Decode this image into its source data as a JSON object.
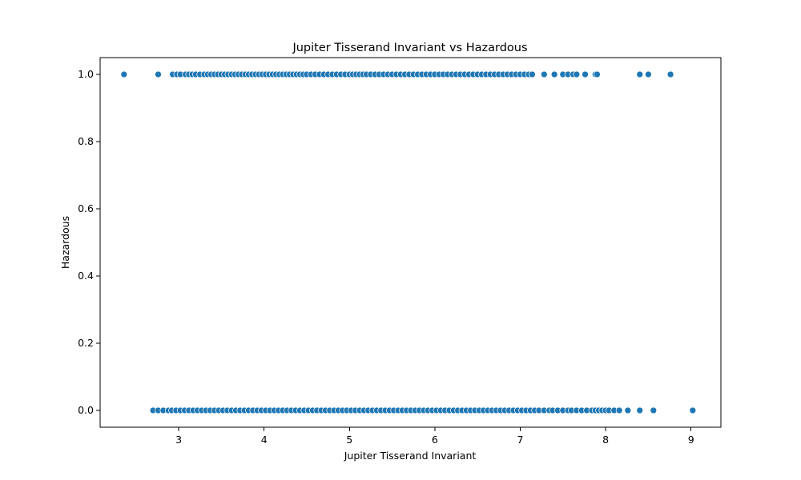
{
  "chart_data": {
    "type": "scatter",
    "title": "Jupiter Tisserand Invariant vs Hazardous",
    "xlabel": "Jupiter Tisserand Invariant",
    "ylabel": "Hazardous",
    "xlim": [
      2.08,
      9.35
    ],
    "ylim": [
      -0.05,
      1.05
    ],
    "xticks": [
      3,
      4,
      5,
      6,
      7,
      8,
      9
    ],
    "yticks": [
      0.0,
      0.2,
      0.4,
      0.6,
      0.8,
      1.0
    ],
    "xtick_labels": [
      "3",
      "4",
      "5",
      "6",
      "7",
      "8",
      "9"
    ],
    "ytick_labels": [
      "0.0",
      "0.2",
      "0.4",
      "0.6",
      "0.8",
      "1.0"
    ],
    "grid": false,
    "marker_color": "#1f77b4",
    "series": [
      {
        "x": [
          2.36,
          2.76,
          2.93,
          2.98,
          3.02,
          3.08,
          3.12,
          3.16,
          3.2,
          3.25,
          3.3,
          3.34,
          3.38,
          3.42,
          3.46,
          3.5,
          3.54,
          3.58,
          3.62,
          3.66,
          3.7,
          3.74,
          3.78,
          3.82,
          3.86,
          3.9,
          3.94,
          3.98,
          4.02,
          4.06,
          4.1,
          4.14,
          4.18,
          4.22,
          4.26,
          4.3,
          4.34,
          4.38,
          4.42,
          4.46,
          4.5,
          4.55,
          4.6,
          4.65,
          4.7,
          4.75,
          4.8,
          4.85,
          4.9,
          4.95,
          5.0,
          5.04,
          5.08,
          5.12,
          5.16,
          5.2,
          5.25,
          5.3,
          5.35,
          5.4,
          5.45,
          5.5,
          5.55,
          5.6,
          5.65,
          5.7,
          5.75,
          5.8,
          5.85,
          5.9,
          5.95,
          6.0,
          6.05,
          6.1,
          6.15,
          6.2,
          6.25,
          6.3,
          6.35,
          6.4,
          6.45,
          6.5,
          6.55,
          6.6,
          6.65,
          6.7,
          6.75,
          6.8,
          6.85,
          6.9,
          6.95,
          7.0,
          7.05,
          7.1,
          7.14,
          7.28,
          7.4,
          7.5,
          7.56,
          7.62,
          7.66,
          7.76,
          7.88,
          7.9,
          8.4,
          8.5,
          8.76
        ],
        "y": [
          1,
          1,
          1,
          1,
          1,
          1,
          1,
          1,
          1,
          1,
          1,
          1,
          1,
          1,
          1,
          1,
          1,
          1,
          1,
          1,
          1,
          1,
          1,
          1,
          1,
          1,
          1,
          1,
          1,
          1,
          1,
          1,
          1,
          1,
          1,
          1,
          1,
          1,
          1,
          1,
          1,
          1,
          1,
          1,
          1,
          1,
          1,
          1,
          1,
          1,
          1,
          1,
          1,
          1,
          1,
          1,
          1,
          1,
          1,
          1,
          1,
          1,
          1,
          1,
          1,
          1,
          1,
          1,
          1,
          1,
          1,
          1,
          1,
          1,
          1,
          1,
          1,
          1,
          1,
          1,
          1,
          1,
          1,
          1,
          1,
          1,
          1,
          1,
          1,
          1,
          1,
          1,
          1,
          1,
          1,
          1,
          1,
          1,
          1,
          1,
          1,
          1,
          1,
          1,
          1,
          1,
          1
        ]
      },
      {
        "x": [
          2.7,
          2.76,
          2.82,
          2.88,
          2.92,
          2.97,
          3.02,
          3.07,
          3.12,
          3.17,
          3.22,
          3.27,
          3.32,
          3.37,
          3.42,
          3.47,
          3.52,
          3.57,
          3.62,
          3.67,
          3.72,
          3.77,
          3.82,
          3.87,
          3.92,
          3.97,
          4.02,
          4.07,
          4.12,
          4.17,
          4.22,
          4.27,
          4.32,
          4.37,
          4.42,
          4.47,
          4.52,
          4.57,
          4.62,
          4.67,
          4.72,
          4.77,
          4.82,
          4.87,
          4.92,
          4.97,
          5.02,
          5.07,
          5.12,
          5.17,
          5.22,
          5.27,
          5.32,
          5.37,
          5.42,
          5.47,
          5.52,
          5.57,
          5.62,
          5.67,
          5.72,
          5.77,
          5.82,
          5.87,
          5.92,
          5.97,
          6.02,
          6.07,
          6.12,
          6.17,
          6.22,
          6.27,
          6.32,
          6.37,
          6.42,
          6.47,
          6.52,
          6.57,
          6.62,
          6.67,
          6.72,
          6.77,
          6.82,
          6.87,
          6.92,
          6.97,
          7.02,
          7.07,
          7.12,
          7.17,
          7.22,
          7.28,
          7.34,
          7.38,
          7.44,
          7.5,
          7.56,
          7.6,
          7.66,
          7.72,
          7.78,
          7.84,
          7.88,
          7.92,
          7.96,
          8.0,
          8.04,
          8.1,
          8.16,
          8.26,
          8.4,
          8.56,
          9.02
        ],
        "y": [
          0,
          0,
          0,
          0,
          0,
          0,
          0,
          0,
          0,
          0,
          0,
          0,
          0,
          0,
          0,
          0,
          0,
          0,
          0,
          0,
          0,
          0,
          0,
          0,
          0,
          0,
          0,
          0,
          0,
          0,
          0,
          0,
          0,
          0,
          0,
          0,
          0,
          0,
          0,
          0,
          0,
          0,
          0,
          0,
          0,
          0,
          0,
          0,
          0,
          0,
          0,
          0,
          0,
          0,
          0,
          0,
          0,
          0,
          0,
          0,
          0,
          0,
          0,
          0,
          0,
          0,
          0,
          0,
          0,
          0,
          0,
          0,
          0,
          0,
          0,
          0,
          0,
          0,
          0,
          0,
          0,
          0,
          0,
          0,
          0,
          0,
          0,
          0,
          0,
          0,
          0,
          0,
          0,
          0,
          0,
          0,
          0,
          0,
          0,
          0,
          0,
          0,
          0,
          0,
          0,
          0,
          0,
          0,
          0,
          0,
          0,
          0,
          0
        ]
      }
    ]
  }
}
